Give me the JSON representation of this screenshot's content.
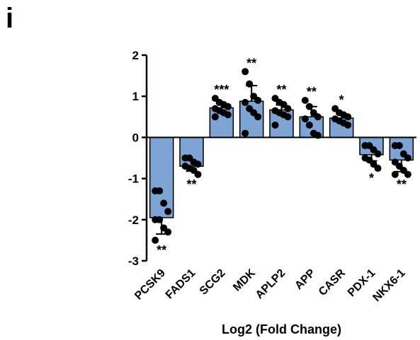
{
  "panel_letter": "i",
  "chart_data": {
    "type": "bar",
    "title": "",
    "xlabel": "Log2 (Fold Change)",
    "ylabel": "",
    "ylim": [
      -3,
      2
    ],
    "yticks": [
      2,
      1,
      0,
      -1,
      -2,
      -3
    ],
    "bar_color": "#7ea4d6",
    "point_color": "#000000",
    "categories": [
      "PCSK9",
      "FADS1",
      "SCG2",
      "MDK",
      "APLP2",
      "APP",
      "CASR",
      "PDX-1",
      "NKX6-1"
    ],
    "values": [
      -1.95,
      -0.7,
      0.72,
      0.88,
      0.67,
      0.5,
      0.47,
      -0.42,
      -0.55
    ],
    "error": [
      0.4,
      0.12,
      0.1,
      0.38,
      0.12,
      0.25,
      0.1,
      0.15,
      0.28
    ],
    "significance": [
      "**",
      "**",
      "***",
      "**",
      "**",
      "**",
      "*",
      "*",
      "**"
    ],
    "points": [
      [
        -1.3,
        -1.3,
        -1.6,
        -1.8,
        -2.0,
        -2.0,
        -2.2,
        -2.3,
        -2.5
      ],
      [
        -0.5,
        -0.5,
        -0.6,
        -0.65,
        -0.7,
        -0.75,
        -0.8,
        -0.9
      ],
      [
        0.95,
        0.85,
        0.8,
        0.75,
        0.7,
        0.65,
        0.6,
        0.55,
        0.5
      ],
      [
        1.6,
        1.3,
        1.0,
        0.9,
        0.85,
        0.7,
        0.6,
        0.5,
        0.1
      ],
      [
        0.95,
        0.85,
        0.8,
        0.7,
        0.65,
        0.6,
        0.55,
        0.5,
        0.3
      ],
      [
        0.9,
        0.75,
        0.6,
        0.5,
        0.45,
        0.3,
        0.1,
        0.05
      ],
      [
        0.7,
        0.6,
        0.55,
        0.5,
        0.45,
        0.4,
        0.35,
        0.3
      ],
      [
        -0.2,
        -0.2,
        -0.3,
        -0.4,
        -0.5,
        -0.55,
        -0.65,
        -0.75
      ],
      [
        -0.2,
        -0.2,
        -0.4,
        -0.5,
        -0.6,
        -0.7,
        -0.8,
        -0.9,
        -0.9
      ]
    ]
  }
}
